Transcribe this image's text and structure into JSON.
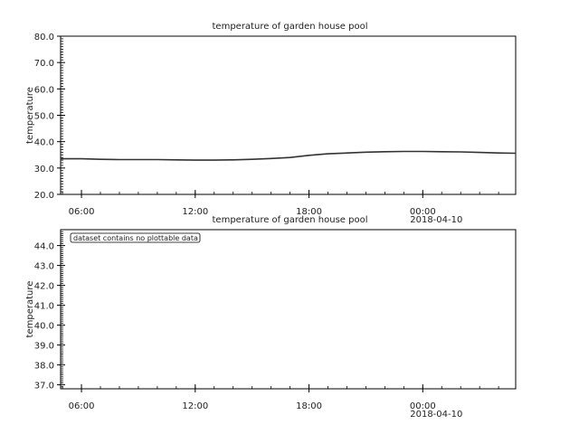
{
  "chart_data": [
    {
      "type": "line",
      "title": "temperature of garden house pool",
      "xlabel": "",
      "ylabel": "temperature",
      "ylim": [
        20,
        80
      ],
      "yticks": [
        "20.0",
        "30.0",
        "40.0",
        "50.0",
        "60.0",
        "70.0",
        "80.0"
      ],
      "xlim_hours": [
        4.9,
        28.9
      ],
      "xticks": [
        {
          "label": "06:00",
          "h": 6
        },
        {
          "label": "12:00",
          "h": 12
        },
        {
          "label": "18:00",
          "h": 18
        },
        {
          "label": "00:00",
          "h": 24
        }
      ],
      "date_label": "2018-04-10",
      "series": [
        {
          "name": "",
          "color": "#333333",
          "x_hours": [
            4.9,
            6,
            7,
            8,
            9,
            10,
            11,
            12,
            13,
            14,
            15,
            16,
            17,
            18,
            19,
            20,
            21,
            22,
            23,
            24,
            25,
            26,
            27,
            28,
            28.9
          ],
          "values": [
            33.5,
            33.5,
            33.3,
            33.2,
            33.2,
            33.2,
            33.1,
            33.0,
            33.0,
            33.1,
            33.3,
            33.6,
            34.0,
            34.8,
            35.4,
            35.7,
            36.0,
            36.2,
            36.3,
            36.3,
            36.2,
            36.1,
            35.9,
            35.7,
            35.6
          ]
        }
      ]
    },
    {
      "type": "line",
      "title": "temperature of garden house pool",
      "xlabel": "",
      "ylabel": "temperature",
      "ylim": [
        36.8,
        44.8
      ],
      "yticks": [
        "37.0",
        "38.0",
        "39.0",
        "40.0",
        "41.0",
        "42.0",
        "43.0",
        "44.0"
      ],
      "xlim_hours": [
        4.9,
        28.9
      ],
      "xticks": [
        {
          "label": "06:00",
          "h": 6
        },
        {
          "label": "12:00",
          "h": 12
        },
        {
          "label": "18:00",
          "h": 18
        },
        {
          "label": "00:00",
          "h": 24
        }
      ],
      "date_label": "2018-04-10",
      "note": "dataset contains no plottable data",
      "series": []
    }
  ]
}
